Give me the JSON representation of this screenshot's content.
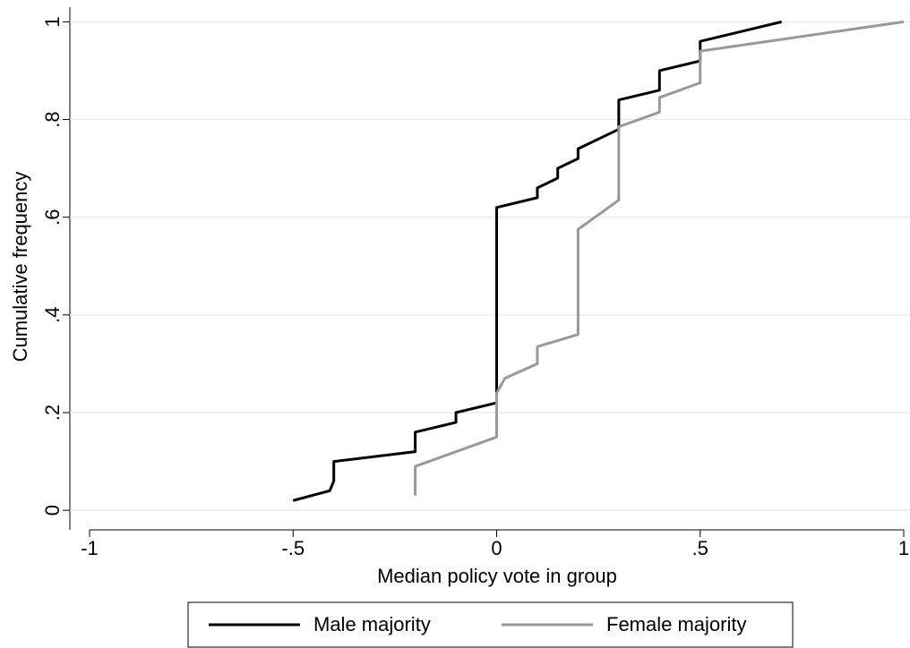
{
  "chart_data": {
    "type": "line",
    "xlabel": "Median policy vote in group",
    "ylabel": "Cumulative frequency",
    "xlim": [
      -1,
      1
    ],
    "ylim": [
      -0.04,
      1.03
    ],
    "xticks": [
      -1,
      {
        "value": -0.5,
        "label": "-.5"
      },
      0,
      {
        "value": 0.5,
        "label": ".5"
      },
      1
    ],
    "yticks": [
      0,
      {
        "value": 0.2,
        "label": ".2"
      },
      {
        "value": 0.4,
        "label": ".4"
      },
      {
        "value": 0.6,
        "label": ".6"
      },
      {
        "value": 0.8,
        "label": ".8"
      },
      1
    ],
    "grid": true,
    "legend": "bottom",
    "series": [
      {
        "name": "Male majority",
        "color": "#000000",
        "x": [
          -0.5,
          -0.41,
          -0.4,
          -0.4,
          -0.2,
          -0.2,
          -0.1,
          -0.1,
          0,
          0,
          0.1,
          0.1,
          0.15,
          0.15,
          0.2,
          0.2,
          0.3,
          0.3,
          0.4,
          0.4,
          0.5,
          0.5,
          0.6,
          0.7
        ],
        "values": [
          0.02,
          0.04,
          0.06,
          0.1,
          0.12,
          0.16,
          0.18,
          0.2,
          0.22,
          0.62,
          0.64,
          0.66,
          0.68,
          0.7,
          0.72,
          0.74,
          0.78,
          0.84,
          0.86,
          0.9,
          0.92,
          0.96,
          0.98,
          1
        ]
      },
      {
        "name": "Female majority",
        "color": "#999999",
        "x": [
          -0.2,
          -0.2,
          0,
          0,
          0.02,
          0.1,
          0.1,
          0.2,
          0.2,
          0.3,
          0.3,
          0.4,
          0.4,
          0.5,
          0.5,
          1
        ],
        "values": [
          0.03,
          0.09,
          0.15,
          0.24,
          0.27,
          0.3,
          0.335,
          0.36,
          0.575,
          0.635,
          0.785,
          0.815,
          0.845,
          0.875,
          0.94,
          1
        ]
      }
    ]
  }
}
